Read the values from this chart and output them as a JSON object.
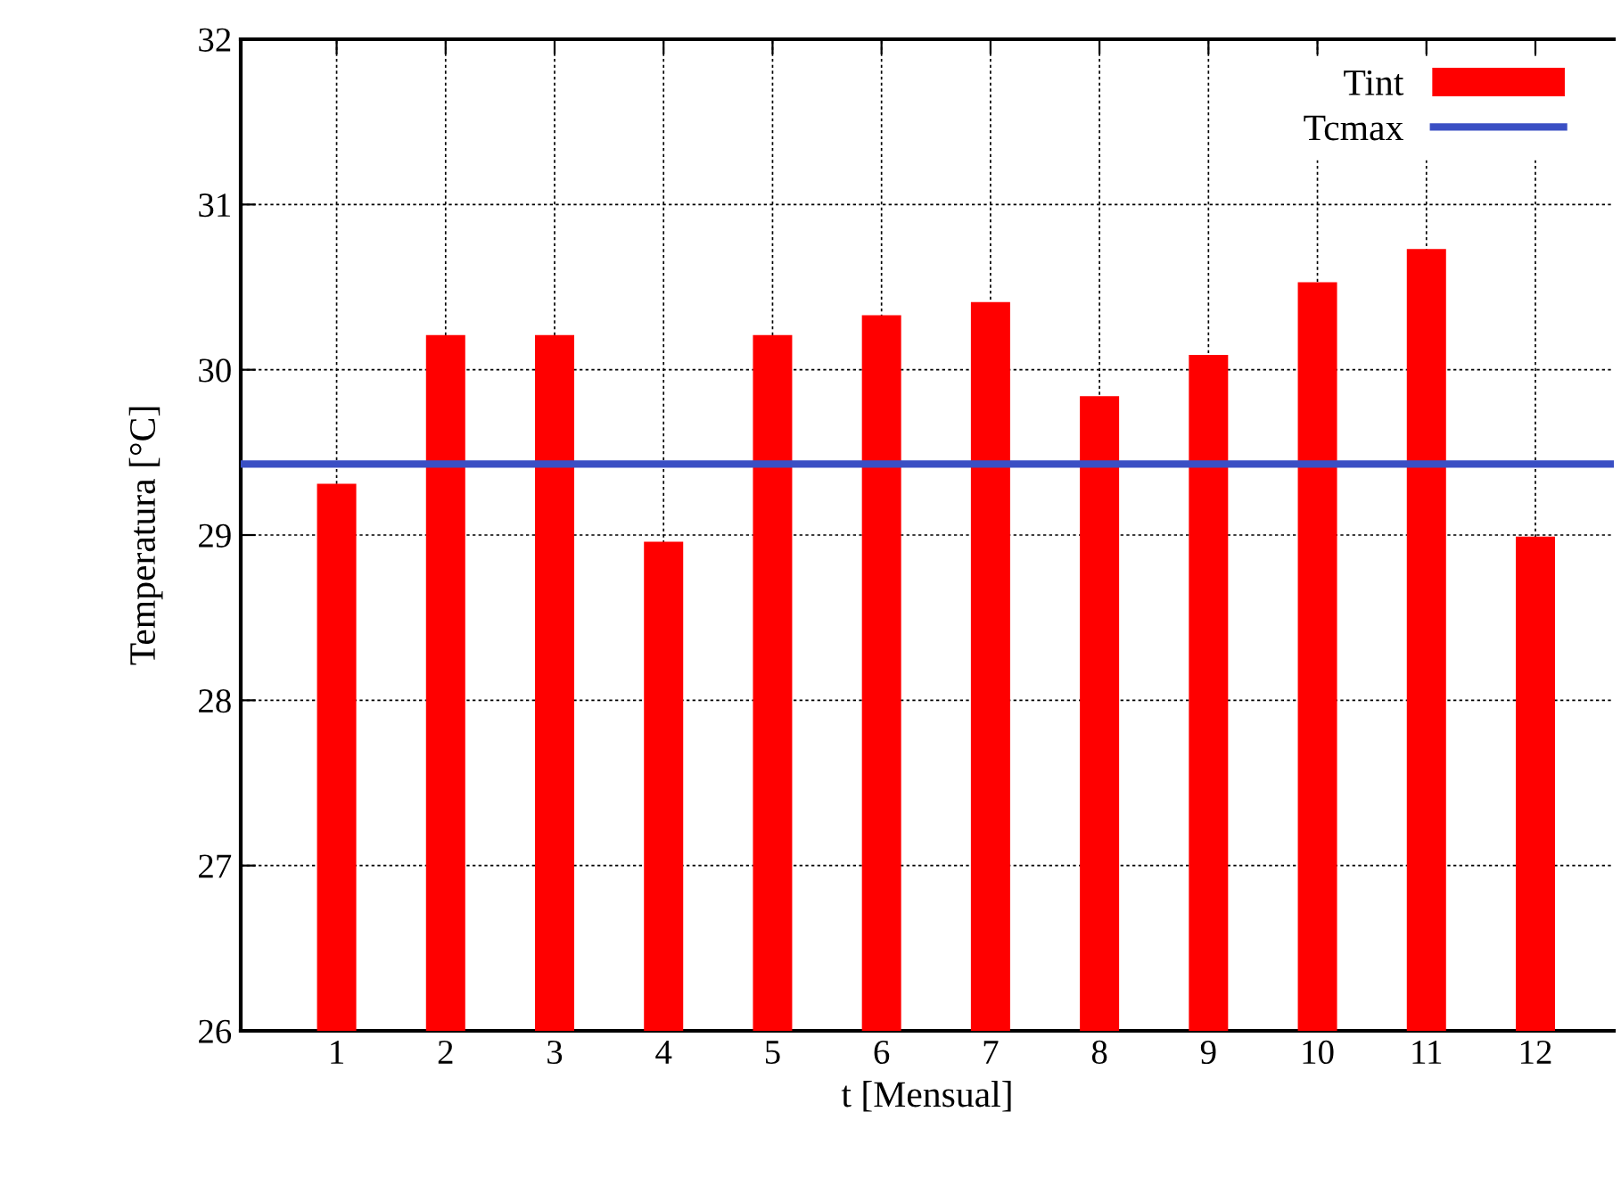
{
  "chart_data": {
    "type": "bar",
    "xlabel": "t [Mensual]",
    "ylabel": "Temperatura [°C]",
    "x": [
      1,
      2,
      3,
      4,
      5,
      6,
      7,
      8,
      9,
      10,
      11,
      12
    ],
    "series": [
      {
        "name": "Tint",
        "color": "#ff0000",
        "values": [
          29.31,
          30.21,
          30.21,
          28.96,
          30.21,
          30.33,
          30.41,
          29.84,
          30.09,
          30.53,
          30.73,
          28.99
        ]
      }
    ],
    "ref_lines": [
      {
        "axis": "y",
        "value": 29.43,
        "label": "Tcmax",
        "color": "#3a4fc4",
        "line_style": "solid"
      }
    ],
    "xlim": [
      0.12,
      12.72
    ],
    "xticks": [
      1,
      2,
      3,
      4,
      5,
      6,
      7,
      8,
      9,
      10,
      11,
      12
    ],
    "ylim": [
      26,
      32
    ],
    "yticks": [
      26,
      27,
      28,
      29,
      30,
      31,
      32
    ],
    "grid": true,
    "legend": "top right"
  }
}
